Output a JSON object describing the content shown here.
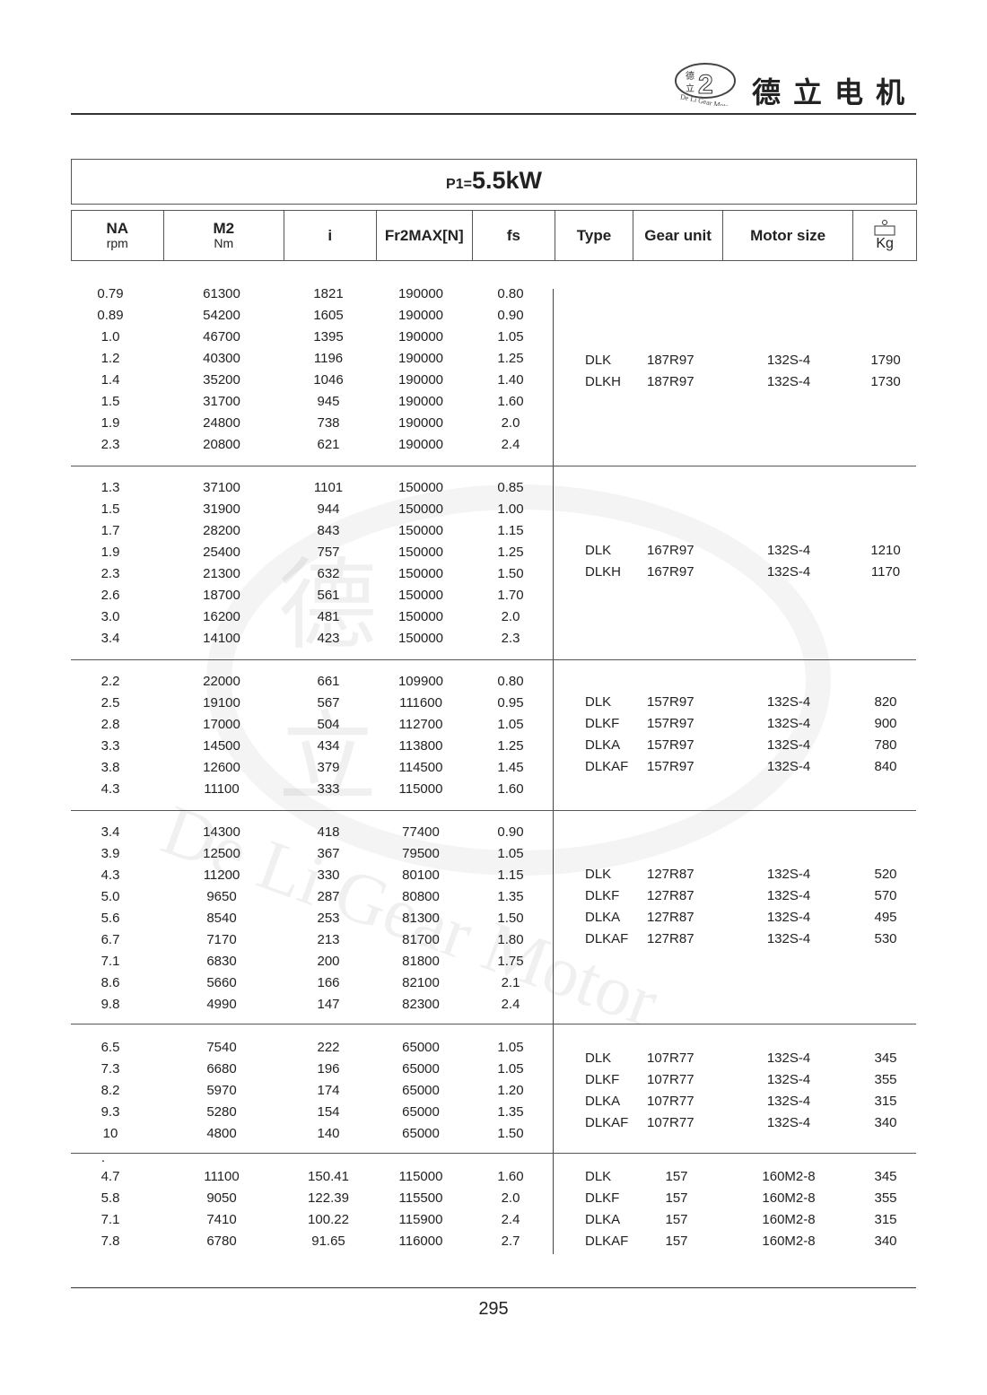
{
  "header": {
    "logo_text": "De Li Gear Motor",
    "logo_chars": "德立",
    "brand": "德立电机"
  },
  "title": {
    "prefix": "P1=",
    "value": "5.5kW"
  },
  "columns": [
    {
      "label": "NA",
      "unit": "rpm"
    },
    {
      "label": "M2",
      "unit": "Nm"
    },
    {
      "label": "i"
    },
    {
      "label": "Fr2MAX[N]"
    },
    {
      "label": "fs"
    },
    {
      "label": "Type"
    },
    {
      "label": "Gear unit"
    },
    {
      "label": "Motor size"
    },
    {
      "label": "Kg",
      "icon": "weight-icon"
    }
  ],
  "groups": [
    {
      "rows": [
        [
          "0.79",
          "61300",
          "1821",
          "190000",
          "0.80"
        ],
        [
          "0.89",
          "54200",
          "1605",
          "190000",
          "0.90"
        ],
        [
          "1.0",
          "46700",
          "1395",
          "190000",
          "1.05"
        ],
        [
          "1.2",
          "40300",
          "1196",
          "190000",
          "1.25"
        ],
        [
          "1.4",
          "35200",
          "1046",
          "190000",
          "1.40"
        ],
        [
          "1.5",
          "31700",
          "945",
          "190000",
          "1.60"
        ],
        [
          "1.9",
          "24800",
          "738",
          "190000",
          "2.0"
        ],
        [
          "2.3",
          "20800",
          "621",
          "190000",
          "2.4"
        ]
      ],
      "units": [
        [
          "DLK",
          "187R97",
          "132S-4",
          "1790"
        ],
        [
          "DLKH",
          "187R97",
          "132S-4",
          "1730"
        ]
      ]
    },
    {
      "rows": [
        [
          "1.3",
          "37100",
          "1101",
          "150000",
          "0.85"
        ],
        [
          "1.5",
          "31900",
          "944",
          "150000",
          "1.00"
        ],
        [
          "1.7",
          "28200",
          "843",
          "150000",
          "1.15"
        ],
        [
          "1.9",
          "25400",
          "757",
          "150000",
          "1.25"
        ],
        [
          "2.3",
          "21300",
          "632",
          "150000",
          "1.50"
        ],
        [
          "2.6",
          "18700",
          "561",
          "150000",
          "1.70"
        ],
        [
          "3.0",
          "16200",
          "481",
          "150000",
          "2.0"
        ],
        [
          "3.4",
          "14100",
          "423",
          "150000",
          "2.3"
        ]
      ],
      "units": [
        [
          "DLK",
          "167R97",
          "132S-4",
          "1210"
        ],
        [
          "DLKH",
          "167R97",
          "132S-4",
          "1170"
        ]
      ]
    },
    {
      "rows": [
        [
          "2.2",
          "22000",
          "661",
          "109900",
          "0.80"
        ],
        [
          "2.5",
          "19100",
          "567",
          "111600",
          "0.95"
        ],
        [
          "2.8",
          "17000",
          "504",
          "112700",
          "1.05"
        ],
        [
          "3.3",
          "14500",
          "434",
          "113800",
          "1.25"
        ],
        [
          "3.8",
          "12600",
          "379",
          "114500",
          "1.45"
        ],
        [
          "4.3",
          "11100",
          "333",
          "115000",
          "1.60"
        ]
      ],
      "units": [
        [
          "DLK",
          "157R97",
          "132S-4",
          "820"
        ],
        [
          "DLKF",
          "157R97",
          "132S-4",
          "900"
        ],
        [
          "DLKA",
          "157R97",
          "132S-4",
          "780"
        ],
        [
          "DLKAF",
          "157R97",
          "132S-4",
          "840"
        ]
      ]
    },
    {
      "rows": [
        [
          "3.4",
          "14300",
          "418",
          "77400",
          "0.90"
        ],
        [
          "3.9",
          "12500",
          "367",
          "79500",
          "1.05"
        ],
        [
          "4.3",
          "11200",
          "330",
          "80100",
          "1.15"
        ],
        [
          "5.0",
          "9650",
          "287",
          "80800",
          "1.35"
        ],
        [
          "5.6",
          "8540",
          "253",
          "81300",
          "1.50"
        ],
        [
          "6.7",
          "7170",
          "213",
          "81700",
          "1.80"
        ],
        [
          "7.1",
          "6830",
          "200",
          "81800",
          "1.75"
        ],
        [
          "8.6",
          "5660",
          "166",
          "82100",
          "2.1"
        ],
        [
          "9.8",
          "4990",
          "147",
          "82300",
          "2.4"
        ]
      ],
      "units": [
        [
          "DLK",
          "127R87",
          "132S-4",
          "520"
        ],
        [
          "DLKF",
          "127R87",
          "132S-4",
          "570"
        ],
        [
          "DLKA",
          "127R87",
          "132S-4",
          "495"
        ],
        [
          "DLKAF",
          "127R87",
          "132S-4",
          "530"
        ]
      ]
    },
    {
      "rows": [
        [
          "6.5",
          "7540",
          "222",
          "65000",
          "1.05"
        ],
        [
          "7.3",
          "6680",
          "196",
          "65000",
          "1.05"
        ],
        [
          "8.2",
          "5970",
          "174",
          "65000",
          "1.20"
        ],
        [
          "9.3",
          "5280",
          "154",
          "65000",
          "1.35"
        ],
        [
          "10",
          "4800",
          "140",
          "65000",
          "1.50"
        ]
      ],
      "units": [
        [
          "DLK",
          "107R77",
          "132S-4",
          "345"
        ],
        [
          "DLKF",
          "107R77",
          "132S-4",
          "355"
        ],
        [
          "DLKA",
          "107R77",
          "132S-4",
          "315"
        ],
        [
          "DLKAF",
          "107R77",
          "132S-4",
          "340"
        ]
      ]
    },
    {
      "mark": ".",
      "rows": [
        [
          "4.7",
          "11100",
          "150.41",
          "115000",
          "1.60"
        ],
        [
          "5.8",
          "9050",
          "122.39",
          "115500",
          "2.0"
        ],
        [
          "7.1",
          "7410",
          "100.22",
          "115900",
          "2.4"
        ],
        [
          "7.8",
          "6780",
          "91.65",
          "116000",
          "2.7"
        ]
      ],
      "units": [
        [
          "DLK",
          "157",
          "160M2-8",
          "345"
        ],
        [
          "DLKF",
          "157",
          "160M2-8",
          "355"
        ],
        [
          "DLKA",
          "157",
          "160M2-8",
          "315"
        ],
        [
          "DLKAF",
          "157",
          "160M2-8",
          "340"
        ]
      ]
    }
  ],
  "page_number": "295"
}
